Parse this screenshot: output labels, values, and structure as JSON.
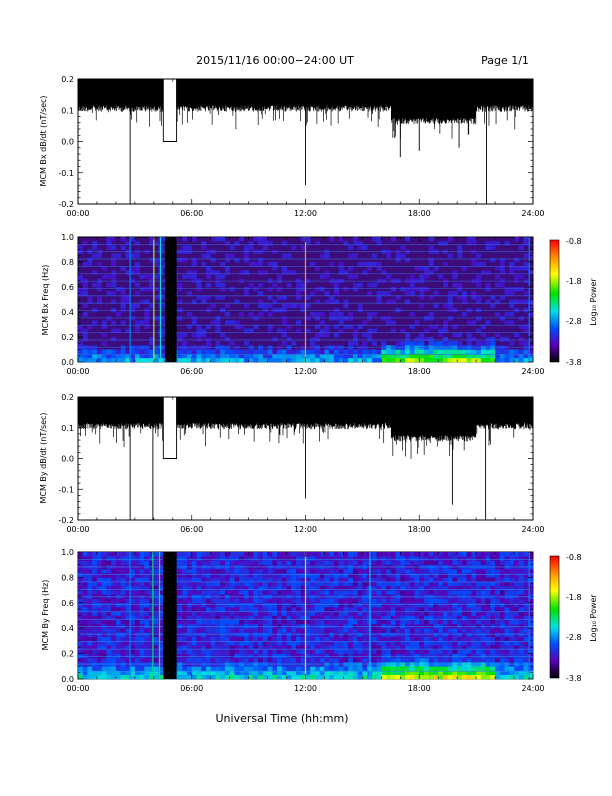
{
  "header": {
    "title": "2015/11/16  00:00−24:00 UT",
    "page": "Page 1/1"
  },
  "xlabel": "Universal Time (hh:mm)",
  "colors": {
    "trace": "#000000",
    "spectrogram_background": "#3c0c7a",
    "data_gap": "#000000"
  },
  "colorbar": {
    "label": "Log₁₀ Power",
    "ticks": [
      "-0.8",
      "-1.8",
      "-2.8",
      "-3.8"
    ],
    "range": [
      -3.8,
      -0.8
    ],
    "colors": [
      "#000000",
      "#5a00b4",
      "#0050ff",
      "#00e0e0",
      "#00e000",
      "#ffff00",
      "#ff8c00",
      "#ff0000"
    ]
  },
  "chart_data": [
    {
      "type": "line",
      "title": "2015/11/16  00:00−24:00 UT",
      "ylabel": "MCM Bx dB/dt (nT/sec)",
      "xlabel": "",
      "xlim": [
        "00:00",
        "24:00"
      ],
      "ylim": [
        -0.2,
        0.2
      ],
      "x_ticks": [
        "00:00",
        "06:00",
        "12:00",
        "18:00",
        "24:00"
      ],
      "y_ticks": [
        "-0.2",
        "-0.1",
        "0.0",
        "0.1",
        "0.2"
      ],
      "baseline": 0.15,
      "gaps": [
        {
          "start_hour": 4.5,
          "end_hour": 5.2,
          "value": 0.0
        }
      ],
      "spikes": [
        {
          "hour": 2.75,
          "value": -0.2
        },
        {
          "hour": 12.0,
          "value": -0.14
        },
        {
          "hour": 17.0,
          "value": -0.05
        },
        {
          "hour": 18.0,
          "value": -0.03
        },
        {
          "hour": 20.1,
          "value": -0.02
        },
        {
          "hour": 21.55,
          "value": -0.2
        }
      ]
    },
    {
      "type": "heatmap",
      "ylabel": "MCM Bx Freq (Hz)",
      "xlabel": "",
      "xlim": [
        "00:00",
        "24:00"
      ],
      "ylim": [
        0.0,
        1.0
      ],
      "x_ticks": [
        "00:00",
        "06:00",
        "12:00",
        "18:00",
        "24:00"
      ],
      "y_ticks": [
        "0.0",
        "0.2",
        "0.4",
        "0.6",
        "0.8",
        "1.0"
      ],
      "color_label": "Log₁₀ Power",
      "color_range": [
        -3.8,
        -0.8
      ],
      "data_gaps": [
        {
          "start_hour": 4.6,
          "end_hour": 5.2
        }
      ],
      "vertical_lines": [
        {
          "hour": 2.75,
          "level": -2.8
        },
        {
          "hour": 4.0,
          "level": -1.8
        },
        {
          "hour": 4.35,
          "level": -2.5
        },
        {
          "hour": 12.0,
          "level": -1.3
        },
        {
          "hour": 23.8,
          "level": -2.8
        }
      ]
    },
    {
      "type": "line",
      "ylabel": "MCM By dB/dt (nT/sec)",
      "xlabel": "",
      "xlim": [
        "00:00",
        "24:00"
      ],
      "ylim": [
        -0.2,
        0.2
      ],
      "x_ticks": [
        "00:00",
        "06:00",
        "12:00",
        "18:00",
        "24:00"
      ],
      "y_ticks": [
        "-0.2",
        "-0.1",
        "0.0",
        "0.1",
        "0.2"
      ],
      "baseline": 0.15,
      "gaps": [
        {
          "start_hour": 4.5,
          "end_hour": 5.2,
          "value": 0.0
        }
      ],
      "spikes": [
        {
          "hour": 2.75,
          "value": -0.2
        },
        {
          "hour": 3.95,
          "value": -0.2
        },
        {
          "hour": 12.0,
          "value": -0.13
        },
        {
          "hour": 19.75,
          "value": -0.15
        },
        {
          "hour": 21.5,
          "value": -0.2
        }
      ]
    },
    {
      "type": "heatmap",
      "ylabel": "MCM By Freq (Hz)",
      "xlabel": "Universal Time (hh:mm)",
      "xlim": [
        "00:00",
        "24:00"
      ],
      "ylim": [
        0.0,
        1.0
      ],
      "x_ticks": [
        "00:00",
        "06:00",
        "12:00",
        "18:00",
        "24:00"
      ],
      "y_ticks": [
        "0.0",
        "0.2",
        "0.4",
        "0.6",
        "0.8",
        "1.0"
      ],
      "color_label": "Log₁₀ Power",
      "color_range": [
        -3.8,
        -0.8
      ],
      "data_gaps": [
        {
          "start_hour": 4.5,
          "end_hour": 5.2
        }
      ],
      "vertical_lines": [
        {
          "hour": 2.75,
          "level": -2.8
        },
        {
          "hour": 3.95,
          "level": -2.3
        },
        {
          "hour": 4.3,
          "level": -2.0
        },
        {
          "hour": 12.0,
          "level": -1.5
        },
        {
          "hour": 15.4,
          "level": -2.6
        },
        {
          "hour": 23.8,
          "level": -2.8
        }
      ]
    }
  ]
}
